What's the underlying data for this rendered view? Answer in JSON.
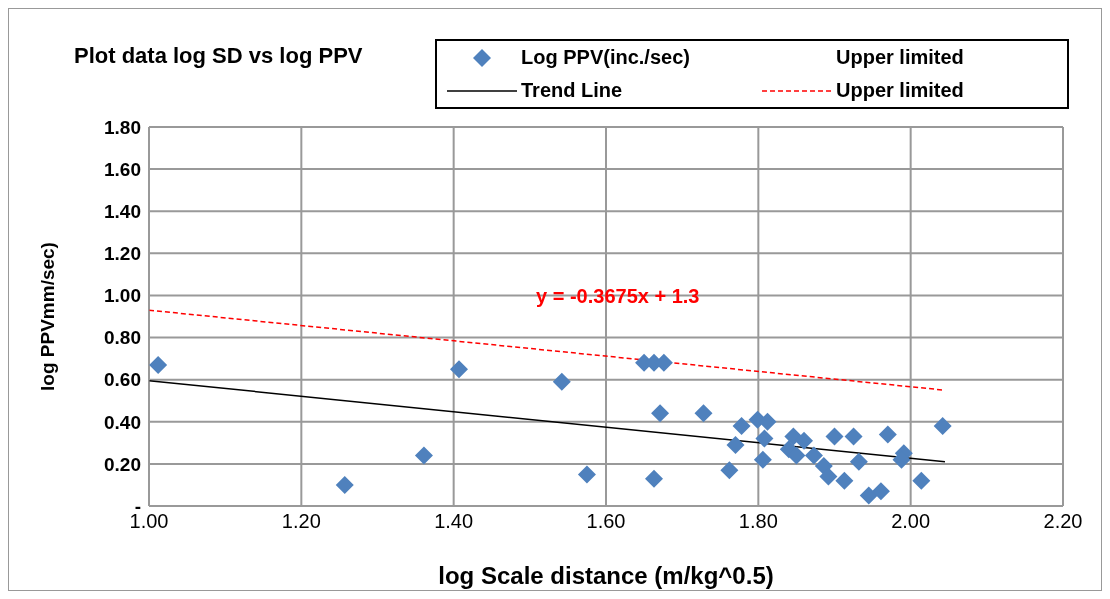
{
  "chart_data": {
    "type": "scatter",
    "title": "Plot data log SD vs log PPV",
    "xlabel": "log Scale distance (m/kg^0.5)",
    "ylabel": "log PPVmm/sec)",
    "xlim": [
      1.0,
      2.2
    ],
    "xticks": [
      {
        "value": 1.0,
        "label": "1.00"
      },
      {
        "value": 1.2,
        "label": "1.20"
      },
      {
        "value": 1.4,
        "label": "1.40"
      },
      {
        "value": 1.6,
        "label": "1.60"
      },
      {
        "value": 1.8,
        "label": "1.80"
      },
      {
        "value": 2.0,
        "label": "2.00"
      },
      {
        "value": 2.2,
        "label": "2.20"
      }
    ],
    "ylim": [
      0,
      1.8
    ],
    "yticks": [
      {
        "value": 0,
        "label": "-"
      },
      {
        "value": 0.2,
        "label": "0.20"
      },
      {
        "value": 0.4,
        "label": "0.40"
      },
      {
        "value": 0.6,
        "label": "0.60"
      },
      {
        "value": 0.8,
        "label": "0.80"
      },
      {
        "value": 1.0,
        "label": "1.00"
      },
      {
        "value": 1.2,
        "label": "1.20"
      },
      {
        "value": 1.4,
        "label": "1.40"
      },
      {
        "value": 1.6,
        "label": "1.60"
      },
      {
        "value": 1.8,
        "label": "1.80"
      }
    ],
    "grid": true,
    "legend": "top right",
    "marker": "diamond",
    "series": [
      {
        "name": "Log PPV(inc./sec)",
        "color": "#4f81bd",
        "x": [
          1.012,
          1.257,
          1.361,
          1.407,
          1.542,
          1.575,
          1.65,
          1.663,
          1.676,
          1.671,
          1.663,
          1.728,
          1.778,
          1.77,
          1.762,
          1.799,
          1.812,
          1.808,
          1.806,
          1.846,
          1.86,
          1.84,
          1.85,
          1.873,
          1.886,
          1.892,
          1.9,
          1.913,
          1.925,
          1.932,
          1.945,
          1.961,
          1.97,
          1.991,
          1.988,
          2.014,
          2.042
        ],
        "values": [
          0.67,
          0.1,
          0.24,
          0.65,
          0.59,
          0.15,
          0.68,
          0.68,
          0.68,
          0.44,
          0.13,
          0.44,
          0.38,
          0.29,
          0.17,
          0.41,
          0.4,
          0.32,
          0.22,
          0.33,
          0.31,
          0.27,
          0.24,
          0.24,
          0.19,
          0.14,
          0.33,
          0.12,
          0.33,
          0.21,
          0.05,
          0.07,
          0.34,
          0.25,
          0.22,
          0.12,
          0.38
        ]
      },
      {
        "name": "Trend Line",
        "type": "line",
        "color": "#000000",
        "line_style": "solid",
        "marker": "none",
        "x": [
          1.0,
          2.045
        ],
        "values": [
          0.595,
          0.21
        ]
      },
      {
        "name": "Upper limited",
        "type": "line",
        "color": "#ff0000",
        "line_style": "dashed",
        "marker": "none",
        "x": [
          1.0,
          2.045
        ],
        "values": [
          0.93,
          0.55
        ]
      }
    ],
    "annotations": [
      "Upper limited",
      "y = -0.3675x + 1.3"
    ]
  }
}
